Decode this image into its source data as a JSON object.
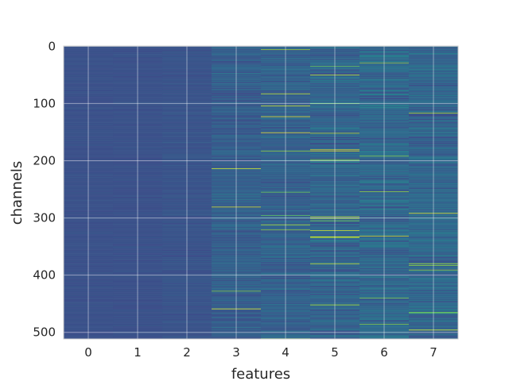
{
  "chart_data": {
    "type": "heatmap",
    "title": "",
    "xlabel": "features",
    "ylabel": "channels",
    "x_categories": [
      "0",
      "1",
      "2",
      "3",
      "4",
      "5",
      "6",
      "7"
    ],
    "y_ticks": [
      0,
      100,
      200,
      300,
      400,
      500
    ],
    "y_range": [
      0,
      511
    ],
    "rows": 512,
    "columns": 8,
    "colormap": "viridis",
    "grid": true,
    "column_variability": [
      0.03,
      0.035,
      0.05,
      0.13,
      0.15,
      0.18,
      0.2,
      0.17
    ],
    "column_mean": [
      0.25,
      0.25,
      0.26,
      0.3,
      0.31,
      0.32,
      0.34,
      0.33
    ],
    "colors": {
      "low": "#440154",
      "mid": "#31688e",
      "high": "#fde725",
      "grid": "#ffffff",
      "frame": "#cccccc"
    }
  }
}
